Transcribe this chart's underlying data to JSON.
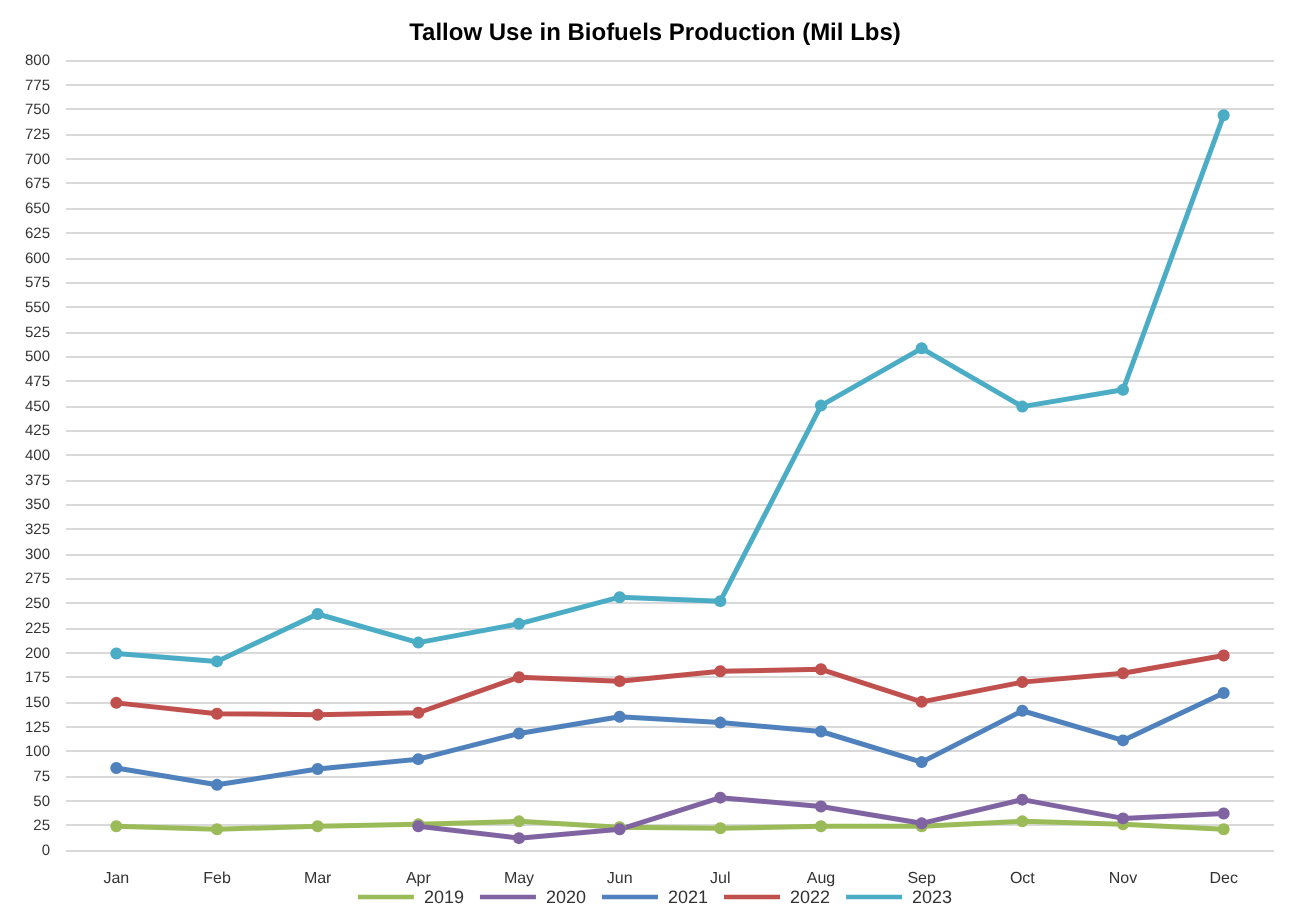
{
  "chart_data": {
    "type": "line",
    "title": "Tallow Use in Biofuels Production (Mil Lbs)",
    "categories": [
      "Jan",
      "Feb",
      "Mar",
      "Apr",
      "May",
      "Jun",
      "Jul",
      "Aug",
      "Sep",
      "Oct",
      "Nov",
      "Dec"
    ],
    "series": [
      {
        "name": "2019",
        "color": "#9bbb59",
        "values": [
          24,
          21,
          24,
          26,
          29,
          23,
          22,
          24,
          24,
          29,
          26,
          21
        ]
      },
      {
        "name": "2020",
        "color": "#8064a2",
        "values": [
          null,
          null,
          null,
          24,
          12,
          21,
          53,
          44,
          27,
          51,
          32,
          37
        ]
      },
      {
        "name": "2021",
        "color": "#4f81bd",
        "values": [
          83,
          66,
          82,
          92,
          118,
          135,
          129,
          120,
          89,
          141,
          111,
          159
        ]
      },
      {
        "name": "2022",
        "color": "#c0504d",
        "values": [
          149,
          138,
          137,
          139,
          175,
          171,
          181,
          183,
          150,
          170,
          179,
          197
        ]
      },
      {
        "name": "2023",
        "color": "#4bacc6",
        "values": [
          199,
          191,
          239,
          210,
          229,
          256,
          252,
          450,
          508,
          449,
          466,
          744
        ]
      }
    ],
    "ylim": [
      0,
      800
    ],
    "yticks": [
      0,
      25,
      50,
      75,
      100,
      125,
      150,
      175,
      200,
      225,
      250,
      275,
      300,
      325,
      350,
      375,
      400,
      425,
      450,
      475,
      500,
      525,
      550,
      575,
      600,
      625,
      650,
      675,
      700,
      725,
      750,
      775,
      800
    ],
    "grid": "y",
    "legend": "bottom",
    "marker": "circle",
    "line_style": "solid"
  }
}
